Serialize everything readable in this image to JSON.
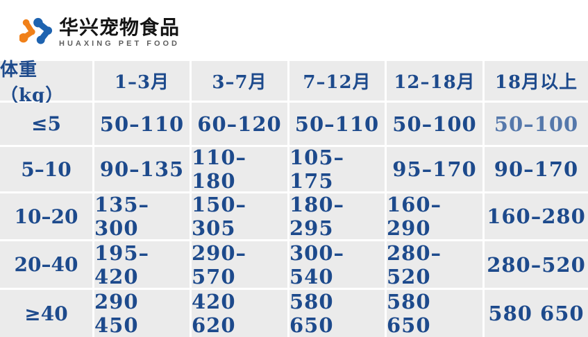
{
  "brand": {
    "name_cn": "华兴宠物食品",
    "name_en": "HUAXING PET FOOD"
  },
  "colors": {
    "text_blue": "#1d4a8c",
    "muted_value_blue": "#5578ab",
    "cell_background": "#ebebeb",
    "logo_orange": "#f08019",
    "logo_blue": "#1e63b0",
    "brand_cn_black": "#141414",
    "brand_en_gray": "#5e5e5e"
  },
  "table": {
    "columns": [
      "体重（kg）",
      "1–3月",
      "3–7月",
      "7–12月",
      "12–18月",
      "18月以上"
    ],
    "rows": [
      {
        "weight": "≤5",
        "values": [
          "50–110",
          "60–120",
          "50–110",
          "50–100",
          "50–100"
        ]
      },
      {
        "weight": "5–10",
        "values": [
          "90–135",
          "110–180",
          "105–175",
          "95–170",
          "90–170"
        ]
      },
      {
        "weight": "10–20",
        "values": [
          "135–300",
          "150–305",
          "180–295",
          "160–290",
          "160–280"
        ]
      },
      {
        "weight": "20–40",
        "values": [
          "195–420",
          "290–570",
          "300–540",
          "280–520",
          "280–520"
        ]
      },
      {
        "weight": "≥40",
        "values": [
          "290 450",
          "420 620",
          "580 650",
          "580 650",
          "580 650"
        ]
      }
    ],
    "muted_cells": [
      [
        0,
        4
      ]
    ]
  }
}
